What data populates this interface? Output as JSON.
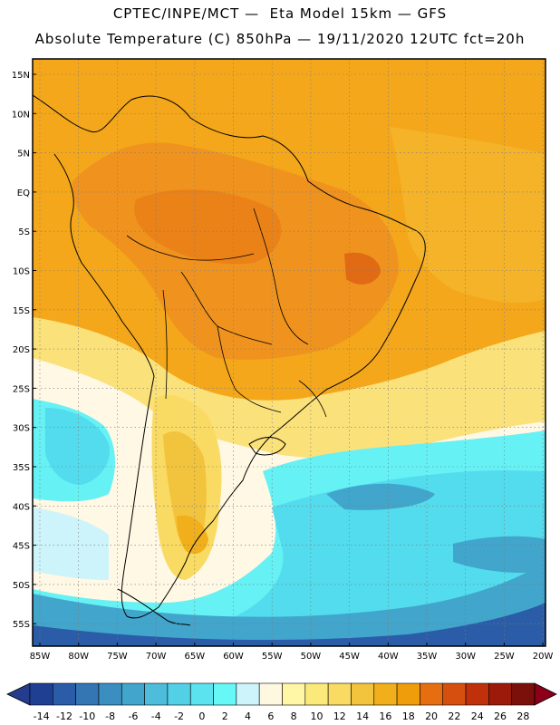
{
  "header": {
    "line1": "CPTEC/INPE/MCT —  Eta Model 15km — GFS",
    "line2": "Absolute Temperature (C) 850hPa — 19/11/2020 12UTC fct=20h"
  },
  "map": {
    "lat_labels": [
      "15N",
      "10N",
      "5N",
      "EQ",
      "5S",
      "10S",
      "15S",
      "20S",
      "25S",
      "30S",
      "35S",
      "40S",
      "45S",
      "50S",
      "55S"
    ],
    "lon_labels": [
      "85W",
      "80W",
      "75W",
      "70W",
      "65W",
      "60W",
      "55W",
      "50W",
      "45W",
      "40W",
      "35W",
      "30W",
      "25W",
      "20W"
    ],
    "regions": [
      {
        "name": "north-ocean-orange",
        "color": "#F4A71A"
      },
      {
        "name": "tropical-land-warm",
        "color": "#EE8C20"
      },
      {
        "name": "subtropical-yellow",
        "color": "#FBE17A"
      },
      {
        "name": "cold-ocean-light",
        "color": "#52DCEE"
      },
      {
        "name": "pale-band",
        "color": "#FFF8E4"
      },
      {
        "name": "deep-cold",
        "color": "#3A98C8"
      }
    ]
  },
  "colorbar": {
    "labels": [
      "-14",
      "-12",
      "-10",
      "-8",
      "-6",
      "-4",
      "-2",
      "0",
      "2",
      "4",
      "6",
      "8",
      "10",
      "12",
      "14",
      "16",
      "18",
      "20",
      "22",
      "24",
      "26",
      "28"
    ],
    "colors": [
      "#1F3F92",
      "#2A5CA8",
      "#3476B4",
      "#3A8EC0",
      "#41A5CC",
      "#4DBDDB",
      "#52D0E6",
      "#5BE3EF",
      "#66F7F7",
      "#CCF4FA",
      "#FFF8E1",
      "#FFF6A6",
      "#FCE97B",
      "#F9DA62",
      "#F2C33C",
      "#F1B01B",
      "#F09D0B",
      "#E66E10",
      "#D74F0E",
      "#BF300B",
      "#9C1A0A",
      "#7A1009"
    ],
    "left_triangle_color": "#243B8E",
    "right_triangle_color": "#8B0018"
  }
}
